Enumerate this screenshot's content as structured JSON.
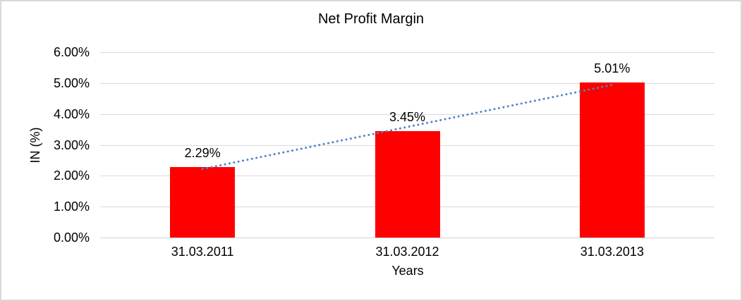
{
  "frame": {
    "background": "#ffffff",
    "border_color": "#d9d9d9"
  },
  "chart_data": {
    "type": "bar",
    "title": "Net Profit Margin",
    "xlabel": "Years",
    "ylabel": "IN (%)",
    "categories": [
      "31.03.2011",
      "31.03.2012",
      "31.03.2013"
    ],
    "values": [
      2.29,
      3.45,
      5.01
    ],
    "data_labels": [
      "2.29%",
      "3.45%",
      "5.01%"
    ],
    "ylim": [
      0,
      6
    ],
    "ytick_step": 1,
    "ytick_labels": [
      "0.00%",
      "1.00%",
      "2.00%",
      "3.00%",
      "4.00%",
      "5.00%",
      "6.00%"
    ],
    "grid": true,
    "legend": "none",
    "bar_color": "#ff0000",
    "gridline_color": "#d9d9d9",
    "text_color": "#000000",
    "trendline": {
      "type": "linear",
      "style": "dotted",
      "color": "#4e86c6",
      "start_value": 2.22,
      "end_value": 4.94
    }
  }
}
